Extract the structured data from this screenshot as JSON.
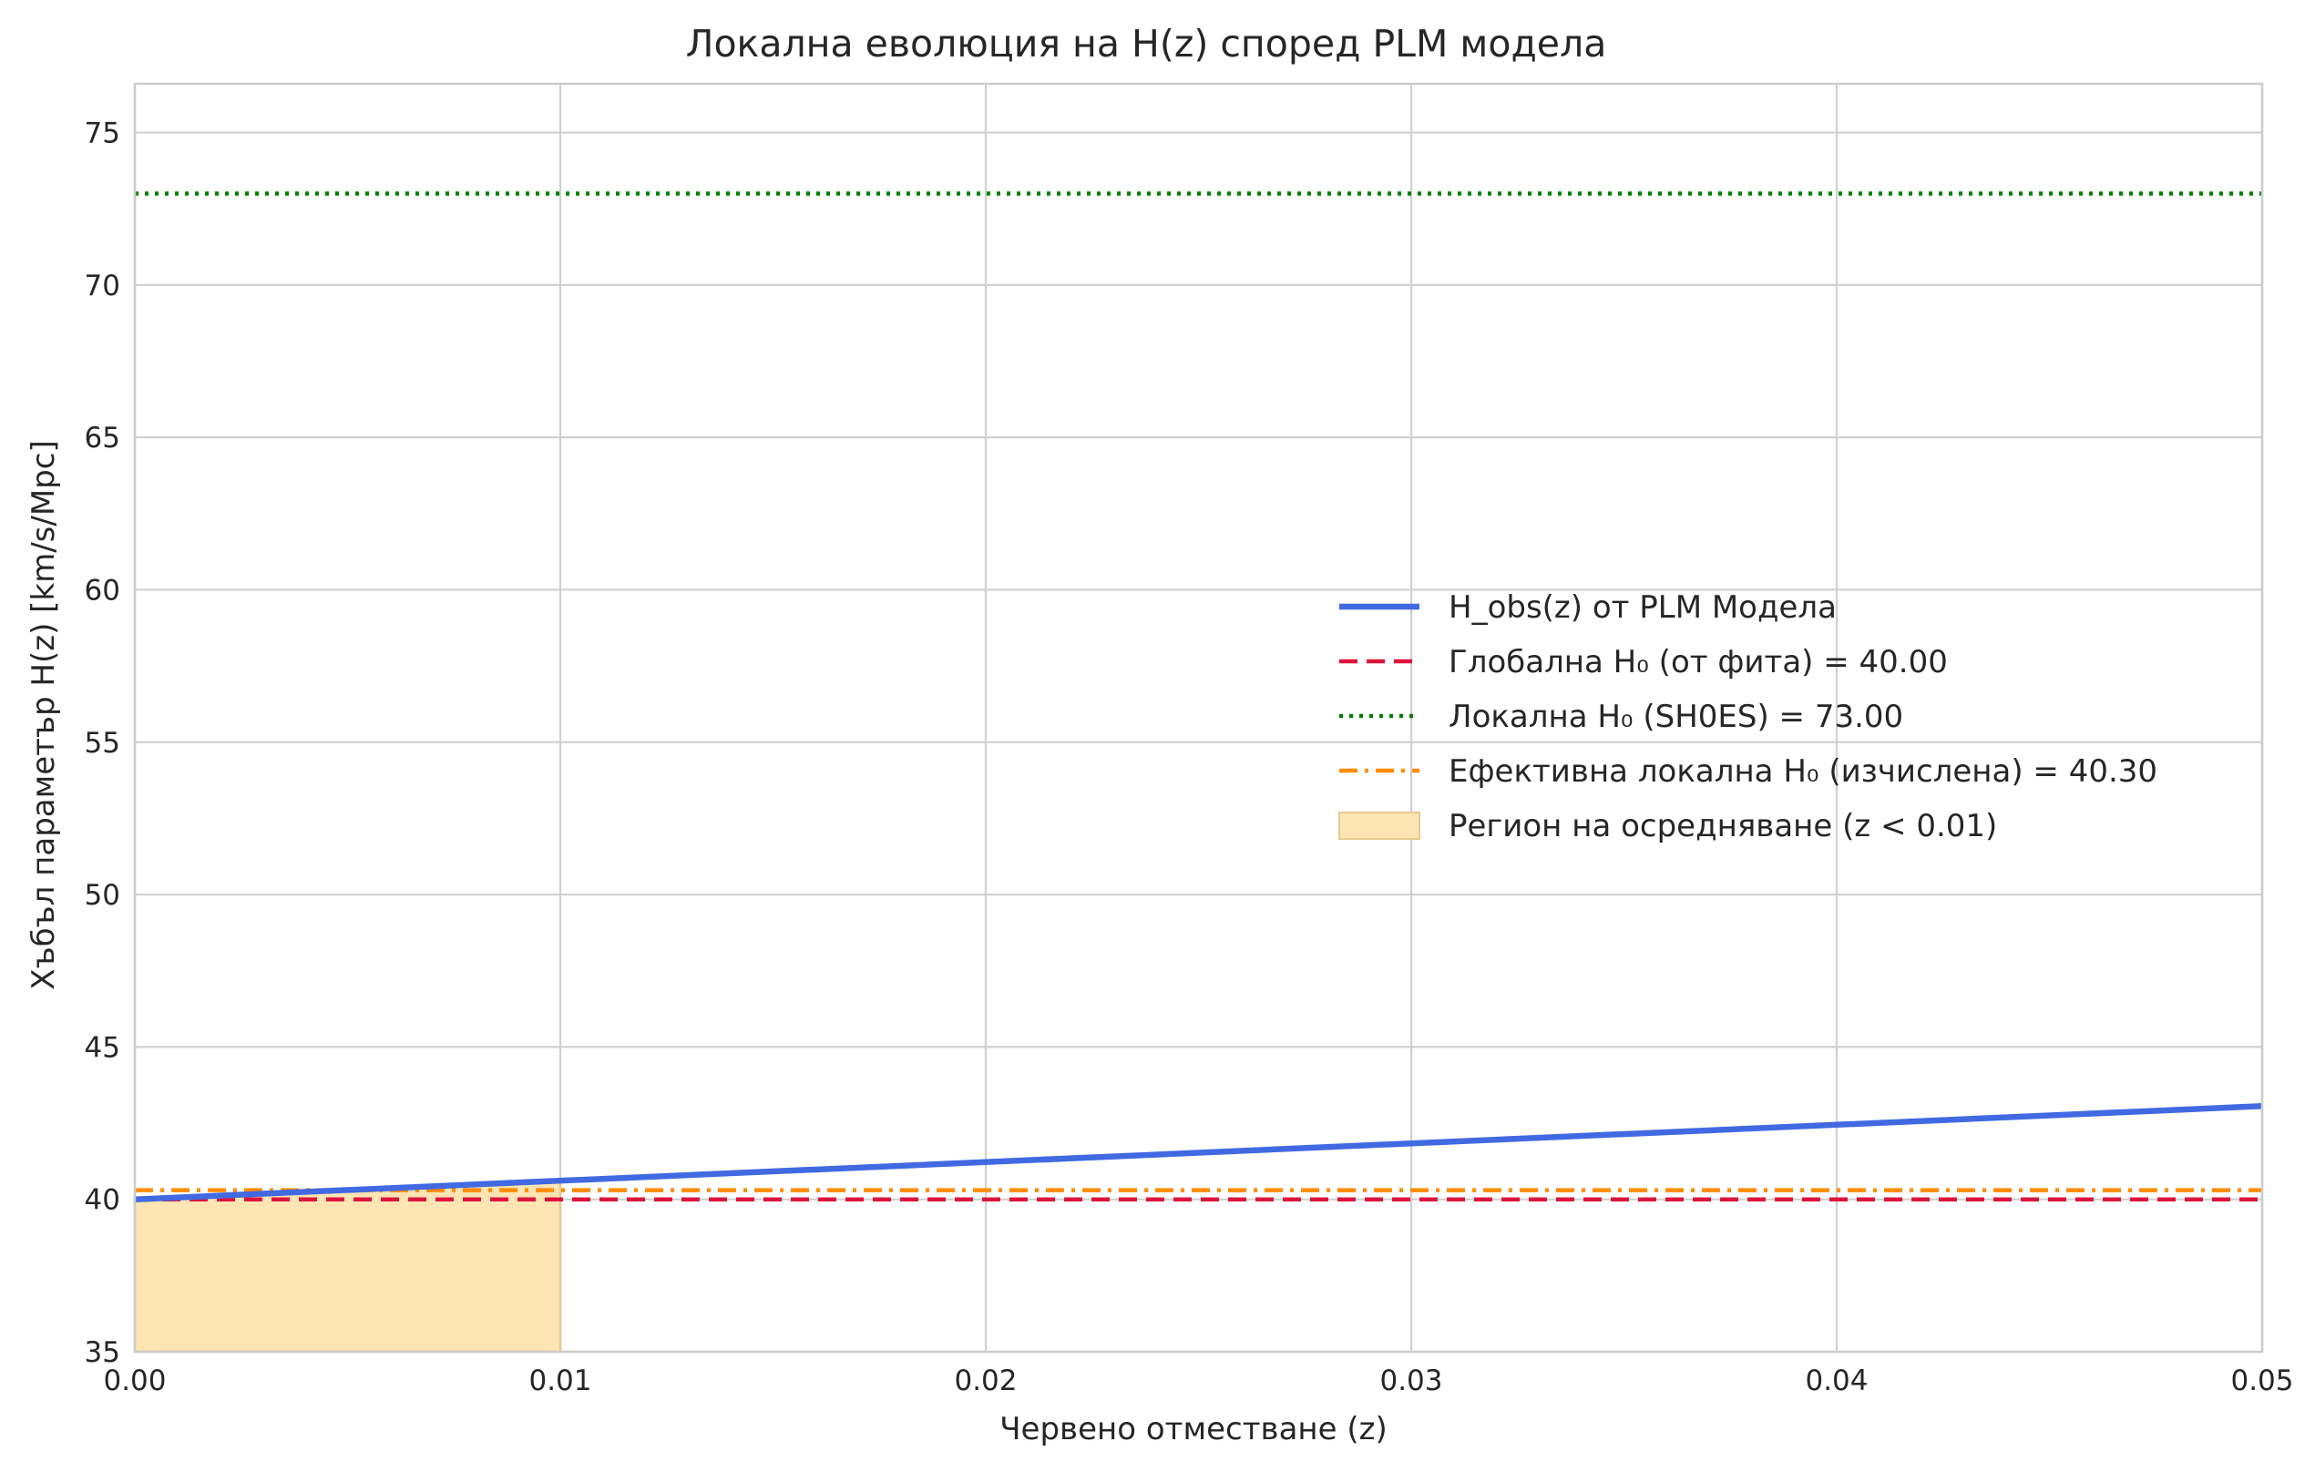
{
  "chart_data": {
    "type": "line",
    "title": "Локална еволюция на H(z) според PLM модела",
    "xlabel": "Червено отместване (z)",
    "ylabel": "Хъбъл параметър H(z) [km/s/Mpc]",
    "xlim": [
      0.0,
      0.05
    ],
    "ylim": [
      35,
      76.6
    ],
    "xticks": [
      0.0,
      0.01,
      0.02,
      0.03,
      0.04,
      0.05
    ],
    "xtick_labels": [
      "0.00",
      "0.01",
      "0.02",
      "0.03",
      "0.04",
      "0.05"
    ],
    "yticks": [
      35,
      40,
      45,
      50,
      55,
      60,
      65,
      70,
      75
    ],
    "ytick_labels": [
      "35",
      "40",
      "45",
      "50",
      "55",
      "60",
      "65",
      "70",
      "75"
    ],
    "grid": true,
    "legend_position": "center-right",
    "series": [
      {
        "name": "H_obs(z) от PLM Модела",
        "kind": "line",
        "style": "solid",
        "color": "#4169e1",
        "x": [
          0.0,
          0.05
        ],
        "y": [
          40.0,
          43.06
        ]
      },
      {
        "name": "Глобална H₀ (от фита) = 40.00",
        "kind": "hline",
        "style": "dashed",
        "color": "#dc143c",
        "y": 40.0
      },
      {
        "name": "Локална H₀ (SH0ES) = 73.00",
        "kind": "hline",
        "style": "dotted",
        "color": "#008000",
        "y": 73.0
      },
      {
        "name": "Ефективна локална H₀ (изчислена) = 40.30",
        "kind": "hline",
        "style": "dashdot",
        "color": "#ff8c00",
        "y": 40.3
      },
      {
        "name": "Регион на осредняване (z < 0.01)",
        "kind": "fill",
        "color": "#ffe5b4",
        "edge_color": "#e8c88e",
        "x": [
          0.0,
          0.01
        ],
        "y_top": [
          40.0,
          40.6
        ],
        "y_bottom": 35
      }
    ]
  }
}
